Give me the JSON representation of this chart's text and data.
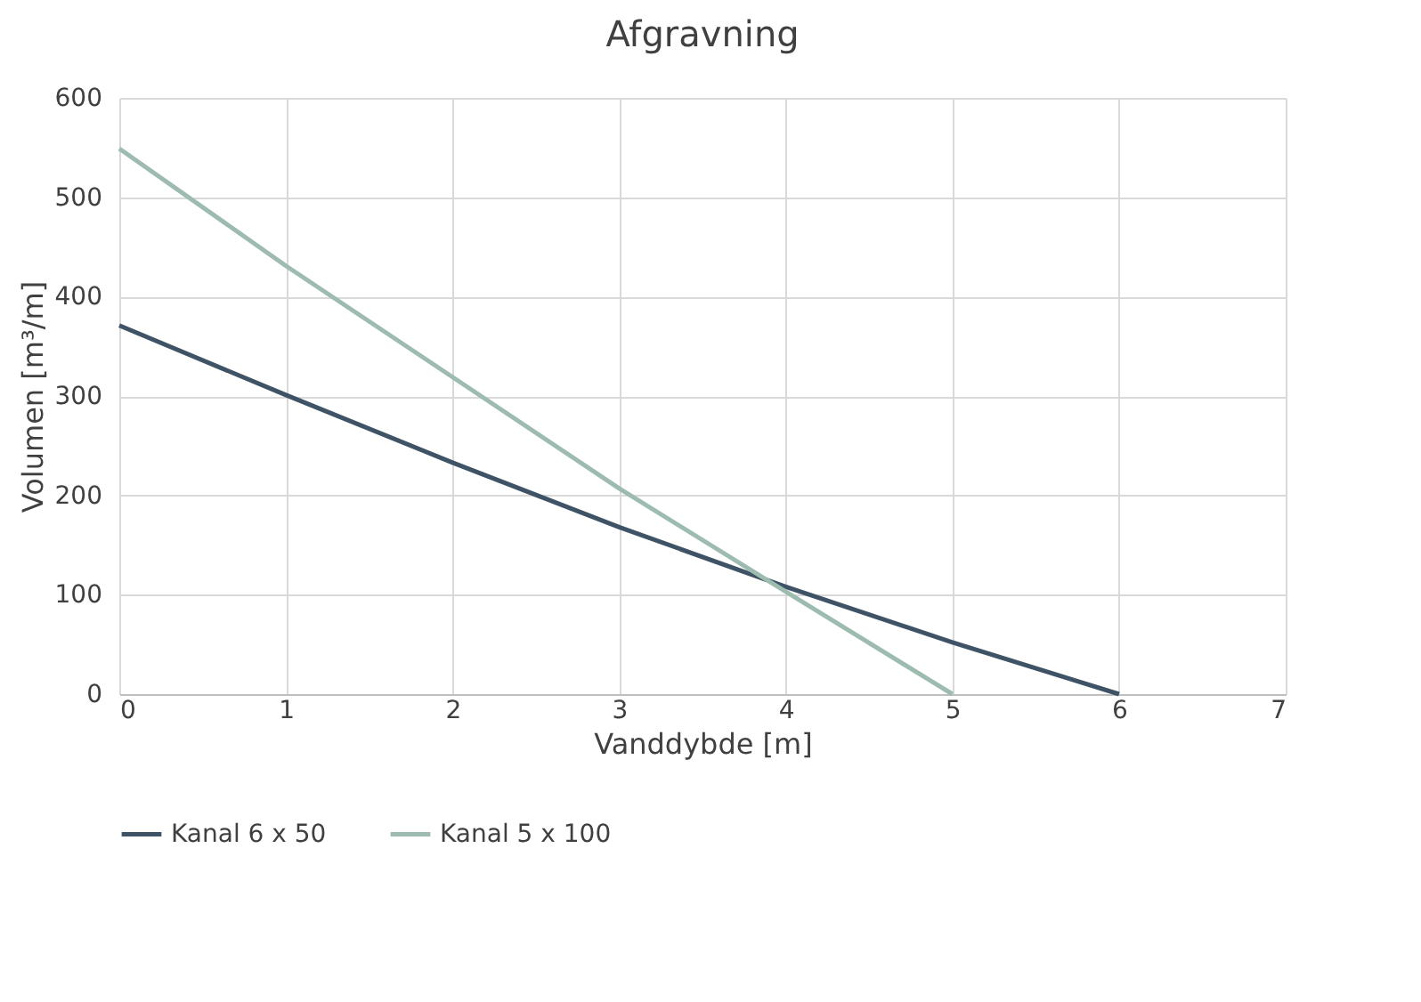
{
  "chart_data": {
    "type": "line",
    "title": "Afgravning",
    "xlabel": "Vanddybde [m]",
    "ylabel": "Volumen [m³/m]",
    "x": [
      0,
      1,
      2,
      3,
      4,
      5,
      6
    ],
    "series": [
      {
        "name": "Kanal 6 x 50",
        "color": "#3e5365",
        "values": [
          371,
          301,
          233,
          168,
          108,
          52,
          0
        ]
      },
      {
        "name": "Kanal 5 x 100",
        "color": "#9dbcaf",
        "values": [
          549,
          431,
          319,
          207,
          103,
          0,
          null
        ]
      }
    ],
    "xlim": [
      0,
      7
    ],
    "xticks": [
      0,
      1,
      2,
      3,
      4,
      5,
      6,
      7
    ],
    "ylim": [
      0,
      600
    ],
    "yticks": [
      0,
      100,
      200,
      300,
      400,
      500,
      600
    ],
    "grid": true,
    "legend": "bottom",
    "marker": "none",
    "line_style": "solid"
  }
}
